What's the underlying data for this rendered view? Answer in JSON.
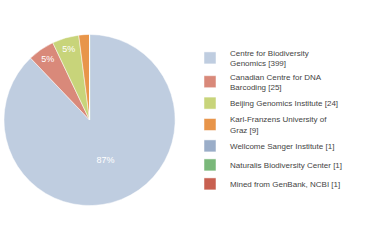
{
  "chart_data": {
    "type": "pie",
    "categories": [
      "Centre for Biodiversity\nGenomics [399]",
      "Canadian Centre for DNA\nBarcoding [25]",
      "Beijing Genomics Institute [24]",
      "Karl-Franzens University of\nGraz [9]",
      "Wellcome Sanger Institute [1]",
      "Naturalis Biodiversity Center [1]",
      "Mined from GenBank, NCBI [1]"
    ],
    "values": [
      87,
      5,
      5,
      2,
      0,
      0,
      0
    ],
    "value_labels": [
      "87%",
      "5%",
      "5%",
      null,
      null,
      null,
      null
    ],
    "colors": [
      "#bfcde0",
      "#d9897a",
      "#c8d47a",
      "#e8954a",
      "#9aadc8",
      "#7ab87a",
      "#c86050"
    ],
    "data_labels": true,
    "legend": "right"
  }
}
